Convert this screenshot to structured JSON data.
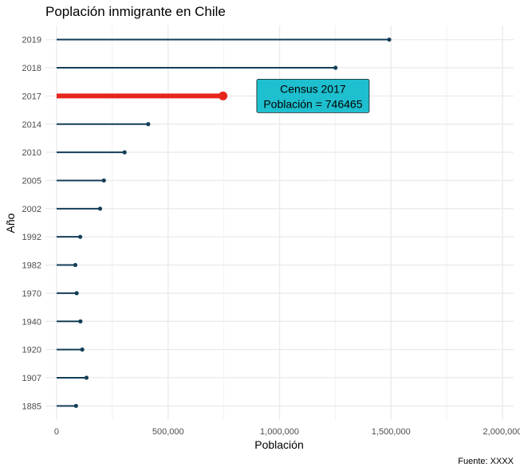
{
  "chart_data": {
    "type": "lollipop",
    "orientation": "horizontal",
    "title": "Poplación inmigrante en Chile",
    "xlabel": "Población",
    "ylabel": "Año",
    "caption": "Fuente: XXXX",
    "xlim": [
      -50000,
      2050000
    ],
    "xticks": [
      0,
      500000,
      1000000,
      1500000,
      2000000
    ],
    "xtick_labels": [
      "0",
      "500,000",
      "1,000,000",
      "1,500,000",
      "2,000,000"
    ],
    "categories": [
      "1885",
      "1907",
      "1920",
      "1940",
      "1970",
      "1982",
      "1992",
      "2002",
      "2005",
      "2010",
      "2014",
      "2017",
      "2018",
      "2019"
    ],
    "values": [
      87000,
      134000,
      115000,
      107000,
      90000,
      84000,
      106000,
      195000,
      212000,
      305000,
      411000,
      746465,
      1251000,
      1492000
    ],
    "highlight": {
      "category": "2017",
      "value": 746465,
      "color": "#e8251c"
    },
    "series_color": "#133e57",
    "grid": true,
    "annotation": {
      "line1": "Census 2017",
      "line2": "Población = 746465",
      "x": 1150000,
      "category": "2017",
      "fill": "#1ebfce"
    }
  }
}
